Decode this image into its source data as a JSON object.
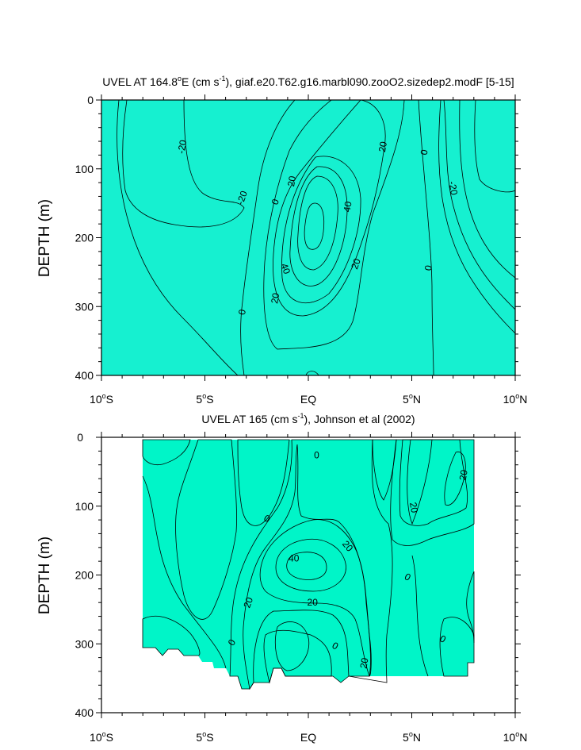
{
  "chart_data": [
    {
      "type": "contour",
      "title": "UVEL AT 164.8°E (cm s-1), giaf.e20.T62.g16.marbl090.zooO2.sizedep2.modF [5-15]",
      "title_parts": {
        "prefix": "UVEL AT 164.8",
        "deg": "o",
        "mid": "E (cm s",
        "exp": "-1",
        "suffix": "), giaf.e20.T62.g16.marbl090.zooO2.sizedep2.modF [5-15]"
      },
      "ylabel": "DEPTH (m)",
      "xlim": [
        -10,
        10
      ],
      "ylim": [
        400,
        0
      ],
      "xticks": [
        {
          "value": -10,
          "num": "10",
          "deg": "o",
          "hem": "S"
        },
        {
          "value": -5,
          "num": "5",
          "deg": "o",
          "hem": "S"
        },
        {
          "value": 0,
          "num": "EQ",
          "deg": "",
          "hem": ""
        },
        {
          "value": 5,
          "num": "5",
          "deg": "o",
          "hem": "N"
        },
        {
          "value": 10,
          "num": "10",
          "deg": "o",
          "hem": "N"
        }
      ],
      "yticks": [
        0,
        100,
        200,
        300,
        400
      ],
      "contour_labels": [
        {
          "text": "-20",
          "lat": -6.1,
          "depth": 68,
          "rot": -80
        },
        {
          "text": "-20",
          "lat": -3.2,
          "depth": 142,
          "rot": -70
        },
        {
          "text": "-20",
          "lat": 7.0,
          "depth": 128,
          "rot": 80
        },
        {
          "text": "0",
          "lat": -1.6,
          "depth": 148,
          "rot": -70
        },
        {
          "text": "0",
          "lat": -3.2,
          "depth": 308,
          "rot": -80
        },
        {
          "text": "0",
          "lat": 5.6,
          "depth": 76,
          "rot": -80
        },
        {
          "text": "0",
          "lat": 5.8,
          "depth": 244,
          "rot": -80
        },
        {
          "text": "20",
          "lat": -0.8,
          "depth": 118,
          "rot": -80
        },
        {
          "text": "20",
          "lat": -1.6,
          "depth": 288,
          "rot": -80
        },
        {
          "text": "20",
          "lat": 2.3,
          "depth": 238,
          "rot": -70
        },
        {
          "text": "20",
          "lat": 3.6,
          "depth": 68,
          "rot": -80
        },
        {
          "text": "40",
          "lat": -1.1,
          "depth": 245,
          "rot": 70
        },
        {
          "text": "40",
          "lat": 1.9,
          "depth": 155,
          "rot": -80
        }
      ]
    },
    {
      "type": "contour",
      "title": "UVEL AT 165 (cm s-1), Johnson et al (2002)",
      "title_parts": {
        "prefix": "UVEL AT 165",
        "deg": "",
        "mid": " (cm s",
        "exp": "-1",
        "suffix": "), Johnson et al (2002)"
      },
      "ylabel": "DEPTH (m)",
      "xlim": [
        -10,
        10
      ],
      "ylim": [
        400,
        0
      ],
      "xticks": [
        {
          "value": -10,
          "num": "10",
          "deg": "o",
          "hem": "S"
        },
        {
          "value": -5,
          "num": "5",
          "deg": "o",
          "hem": "S"
        },
        {
          "value": 0,
          "num": "EQ",
          "deg": "",
          "hem": ""
        },
        {
          "value": 5,
          "num": "5",
          "deg": "o",
          "hem": "N"
        },
        {
          "value": 10,
          "num": "10",
          "deg": "o",
          "hem": "N"
        }
      ],
      "yticks": [
        0,
        100,
        200,
        300,
        400
      ],
      "contour_labels": [
        {
          "text": "0",
          "lat": 0.4,
          "depth": 26,
          "rot": 0
        },
        {
          "text": "0",
          "lat": -2.0,
          "depth": 118,
          "rot": 30
        },
        {
          "text": "0",
          "lat": -3.7,
          "depth": 298,
          "rot": -60
        },
        {
          "text": "0",
          "lat": 1.3,
          "depth": 303,
          "rot": 30
        },
        {
          "text": "0",
          "lat": 4.8,
          "depth": 203,
          "rot": 30
        },
        {
          "text": "0",
          "lat": 6.5,
          "depth": 293,
          "rot": 30
        },
        {
          "text": "20",
          "lat": 7.5,
          "depth": 55,
          "rot": -80
        },
        {
          "text": "20",
          "lat": 5.1,
          "depth": 102,
          "rot": 80
        },
        {
          "text": "20",
          "lat": 1.9,
          "depth": 158,
          "rot": 50
        },
        {
          "text": "20",
          "lat": -2.9,
          "depth": 240,
          "rot": -70
        },
        {
          "text": "20",
          "lat": 0.2,
          "depth": 240,
          "rot": 0
        },
        {
          "text": "20",
          "lat": 2.7,
          "depth": 328,
          "rot": -80
        },
        {
          "text": "40",
          "lat": -0.7,
          "depth": 176,
          "rot": 0
        }
      ]
    }
  ],
  "colors": {
    "neg20": "#36E5FA",
    "neg40": "#19C2F8",
    "neg0": "#16F0D0",
    "pos0": "#4CE804",
    "pos20": "#82FC0C",
    "pos30": "#FFF820",
    "pos40": "#FFD20A",
    "pos50": "#FFB714",
    "pos60": "#F5961C",
    "obs_neg0": "#00F5C8",
    "obs_neg20": "#00FFF2"
  }
}
